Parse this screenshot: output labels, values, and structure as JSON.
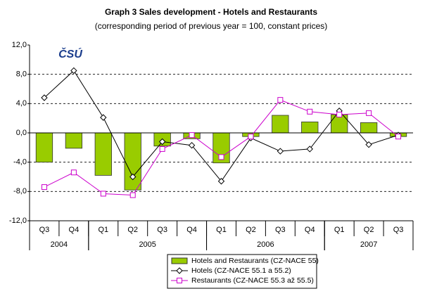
{
  "chart_data": {
    "type": "bar-line",
    "title": "Graph 3 Sales development - Hotels and Restaurants",
    "subtitle": "(corresponding period of previous year = 100, constant prices)",
    "logo": "ČSÚ",
    "categories": [
      "Q3",
      "Q4",
      "Q1",
      "Q2",
      "Q3",
      "Q4",
      "Q1",
      "Q2",
      "Q3",
      "Q4",
      "Q1",
      "Q2",
      "Q3"
    ],
    "year_groups": [
      {
        "label": "2004",
        "span": 2
      },
      {
        "label": "2005",
        "span": 4
      },
      {
        "label": "2006",
        "span": 4
      },
      {
        "label": "2007",
        "span": 3
      }
    ],
    "series": [
      {
        "name": "Hotels and Restaurants (CZ-NACE 55)",
        "type": "bar",
        "color": "#99cc00",
        "values": [
          -4.0,
          -2.1,
          -5.8,
          -7.8,
          -1.8,
          -0.8,
          -4.1,
          -0.5,
          2.4,
          1.5,
          2.5,
          1.4,
          -0.5
        ]
      },
      {
        "name": "Hotels (CZ-NACE 55.1 a 55.2)",
        "type": "line",
        "marker": "diamond",
        "color": "#000000",
        "values": [
          4.8,
          8.5,
          2.1,
          -6.0,
          -1.2,
          -1.7,
          -6.6,
          -0.7,
          -2.5,
          -2.2,
          3.0,
          -1.6,
          -0.3
        ]
      },
      {
        "name": "Restaurants (CZ-NACE 55.3 až 55.5)",
        "type": "line",
        "marker": "square",
        "color": "#cc00cc",
        "values": [
          -7.4,
          -5.4,
          -8.3,
          -8.5,
          -2.2,
          -0.3,
          -3.3,
          -0.5,
          4.5,
          2.9,
          2.5,
          2.7,
          -0.5
        ]
      }
    ],
    "ylim": [
      -12,
      12
    ],
    "yticks": [
      {
        "value": -12,
        "label": "-12,0"
      },
      {
        "value": -8,
        "label": "-8,0"
      },
      {
        "value": -4,
        "label": "-4,0"
      },
      {
        "value": 0,
        "label": "0,0"
      },
      {
        "value": 4,
        "label": "4,0"
      },
      {
        "value": 8,
        "label": "8,0"
      },
      {
        "value": 12,
        "label": "12,0"
      }
    ],
    "grid": true,
    "legend": "bottom"
  }
}
